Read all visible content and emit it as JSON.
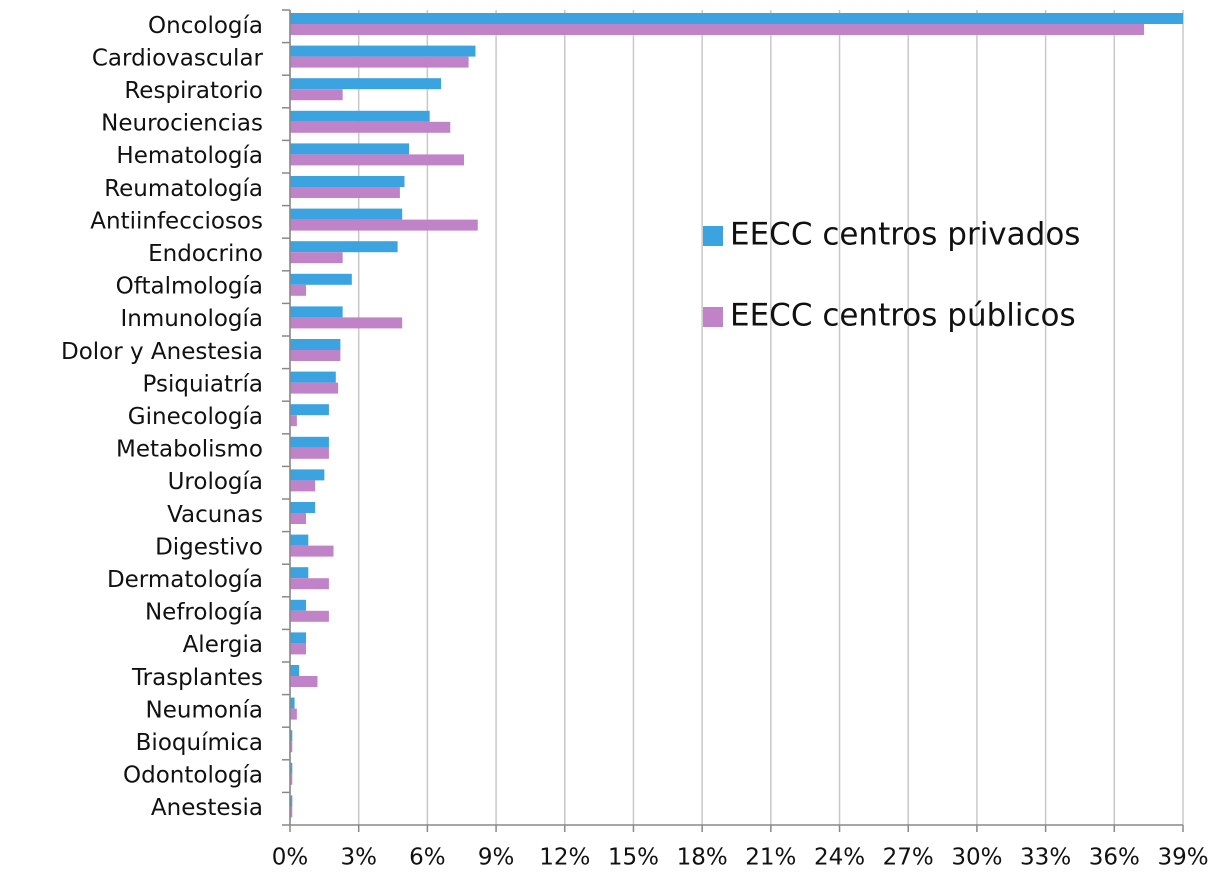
{
  "chart_data": {
    "type": "bar",
    "orientation": "horizontal",
    "categories": [
      "Oncología",
      "Cardiovascular",
      "Respiratorio",
      "Neurociencias",
      "Hematología",
      "Reumatología",
      "Antiinfecciosos",
      "Endocrino",
      "Oftalmología",
      "Inmunología",
      "Dolor y Anestesia",
      "Psiquiatría",
      "Ginecología",
      "Metabolismo",
      "Urología",
      "Vacunas",
      "Digestivo",
      "Dermatología",
      "Nefrología",
      "Alergia",
      "Trasplantes",
      "Neumonía",
      "Bioquímica",
      "Odontología",
      "Anestesia"
    ],
    "series": [
      {
        "name": "EECC centros privados",
        "color": "#3aa3e0",
        "values": [
          39,
          8.1,
          6.6,
          6.1,
          5.2,
          5.0,
          4.9,
          4.7,
          2.7,
          2.3,
          2.2,
          2.0,
          1.7,
          1.7,
          1.5,
          1.1,
          0.8,
          0.8,
          0.7,
          0.7,
          0.4,
          0.2,
          0.1,
          0.1,
          0.1
        ]
      },
      {
        "name": "EECC centros públicos",
        "color": "#c083c8",
        "values": [
          37.3,
          7.8,
          2.3,
          7.0,
          7.6,
          4.8,
          8.2,
          2.3,
          0.7,
          4.9,
          2.2,
          2.1,
          0.3,
          1.7,
          1.1,
          0.7,
          1.9,
          1.7,
          1.7,
          0.7,
          1.2,
          0.3,
          0.1,
          0.1,
          0.1
        ]
      }
    ],
    "xlim": [
      0,
      39
    ],
    "xticks": [
      {
        "value": 0,
        "label": "0%"
      },
      {
        "value": 3,
        "label": "3%"
      },
      {
        "value": 6,
        "label": "6%"
      },
      {
        "value": 9,
        "label": "9%"
      },
      {
        "value": 12,
        "label": "12%"
      },
      {
        "value": 15,
        "label": "15%"
      },
      {
        "value": 18,
        "label": "18%"
      },
      {
        "value": 21,
        "label": "21%"
      },
      {
        "value": 24,
        "label": "24%"
      },
      {
        "value": 27,
        "label": "27%"
      },
      {
        "value": 30,
        "label": "30%"
      },
      {
        "value": 33,
        "label": "33%"
      },
      {
        "value": 36,
        "label": "36%"
      },
      {
        "value": 39,
        "label": "39%"
      }
    ],
    "grid": true,
    "legend": "right"
  }
}
